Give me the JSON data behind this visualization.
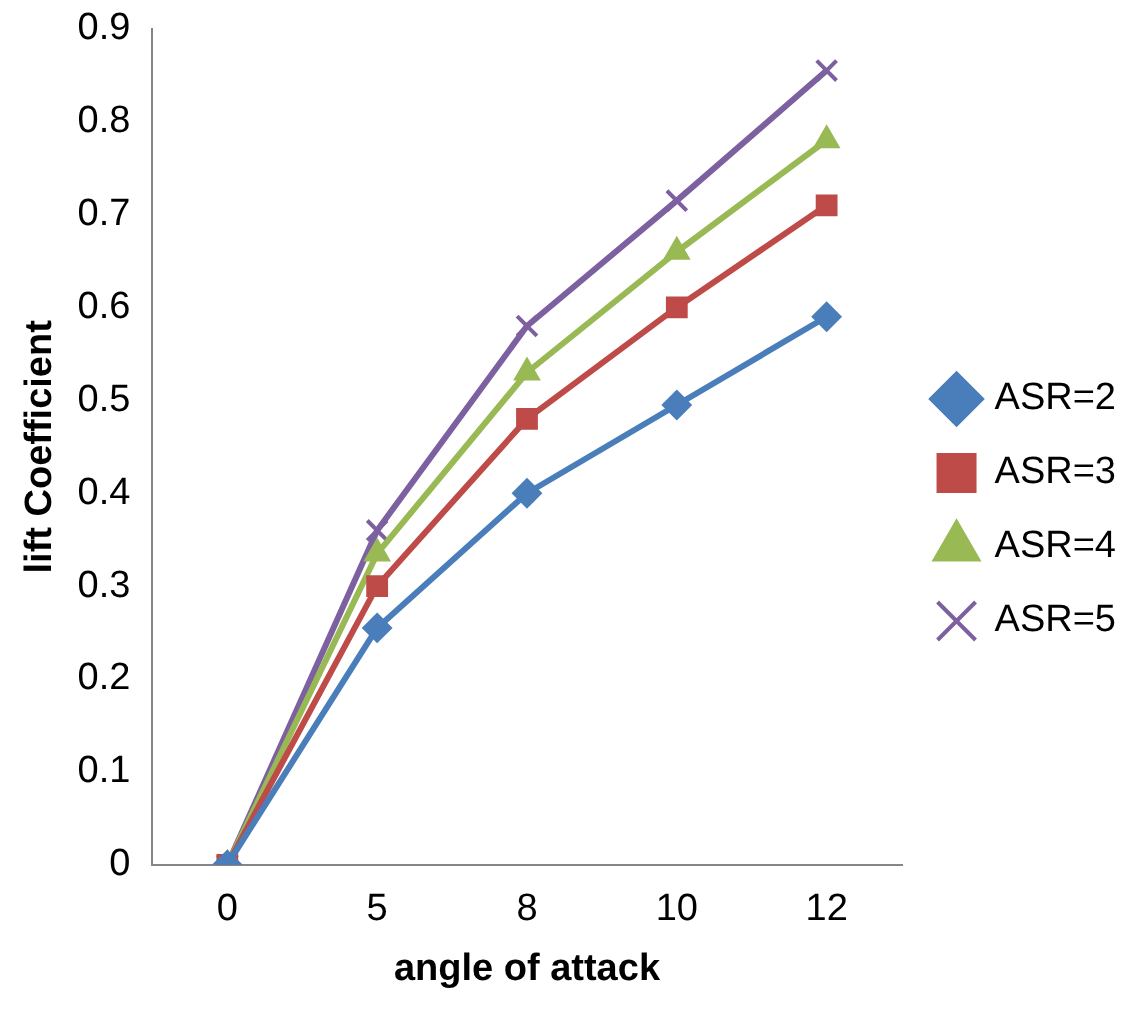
{
  "chart_data": {
    "type": "line",
    "xlabel": "angle of attack",
    "ylabel": "lift Coefficient",
    "categories": [
      "0",
      "5",
      "8",
      "10",
      "12"
    ],
    "ylim": [
      0,
      0.9
    ],
    "yticks": [
      0,
      0.1,
      0.2,
      0.3,
      0.4,
      0.5,
      0.6,
      0.7,
      0.8,
      0.9
    ],
    "grid": false,
    "legend": "right",
    "line_style": "solid",
    "series": [
      {
        "name": "ASR=2",
        "color": "#4a7ebb",
        "marker": "diamond",
        "values": [
          0,
          0.255,
          0.4,
          0.495,
          0.59
        ]
      },
      {
        "name": "ASR=3",
        "color": "#be4b48",
        "marker": "square",
        "values": [
          0,
          0.3,
          0.48,
          0.6,
          0.71
        ]
      },
      {
        "name": "ASR=4",
        "color": "#98b954",
        "marker": "triangle",
        "values": [
          0,
          0.335,
          0.53,
          0.66,
          0.78
        ]
      },
      {
        "name": "ASR=5",
        "color": "#7d60a0",
        "marker": "cross",
        "values": [
          0,
          0.36,
          0.58,
          0.715,
          0.855
        ]
      }
    ]
  }
}
